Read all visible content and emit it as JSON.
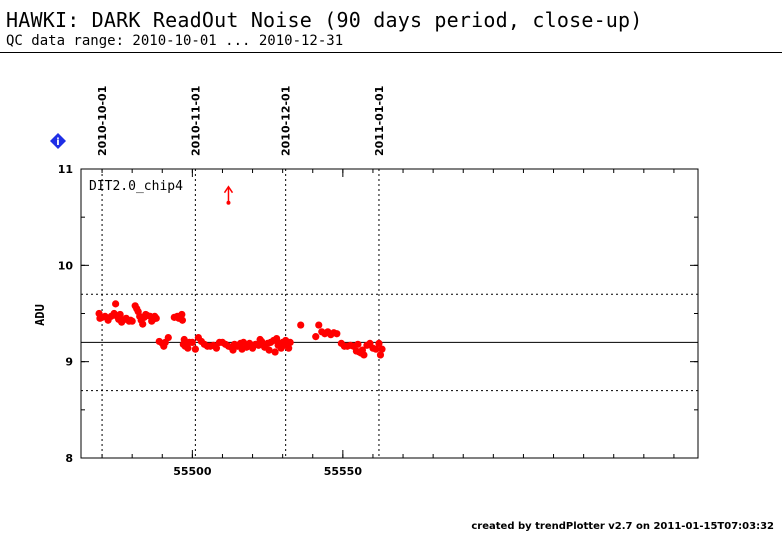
{
  "header": {
    "title": "HAWKI: DARK ReadOut Noise (90 days period, close-up)",
    "subtitle": "QC data range: 2010-10-01 ... 2010-12-31"
  },
  "footer": {
    "credit": "created by trendPlotter v2.7 on 2011-01-15T07:03:32"
  },
  "info_icon": {
    "name": "info-diamond-icon",
    "glyph": "i",
    "color": "#1e2ee6"
  },
  "colors": {
    "points": "#ff0000",
    "lines": "#000000"
  },
  "chart_data": {
    "type": "scatter",
    "ylabel": "ADU",
    "panel_label": "DIT2.0_chip4",
    "xlim": [
      55463,
      55668
    ],
    "ylim": [
      8,
      11
    ],
    "x_ticks": [
      55500,
      55550
    ],
    "x_tick_labels": [
      "55500",
      "55550"
    ],
    "y_ticks": [
      8,
      9,
      10,
      11
    ],
    "y_tick_labels": [
      "8",
      "9",
      "10",
      "11"
    ],
    "reference_lines": {
      "mean": 9.2,
      "upper": 9.7,
      "lower": 8.7
    },
    "date_markers": [
      {
        "label": "2010-10-01",
        "x": 55470
      },
      {
        "label": "2010-11-01",
        "x": 55501
      },
      {
        "label": "2010-12-01",
        "x": 55531
      },
      {
        "label": "2011-01-01",
        "x": 55562
      }
    ],
    "outlier": {
      "x": 55512,
      "y": 11.2,
      "shown_at": 10.65,
      "note": "off-scale"
    },
    "points": [
      [
        55469,
        9.5
      ],
      [
        55469.3,
        9.45
      ],
      [
        55470,
        9.46
      ],
      [
        55471,
        9.47
      ],
      [
        55472,
        9.43
      ],
      [
        55473,
        9.47
      ],
      [
        55474,
        9.5
      ],
      [
        55474.5,
        9.6
      ],
      [
        55475,
        9.47
      ],
      [
        55475.5,
        9.44
      ],
      [
        55476,
        9.49
      ],
      [
        55476.5,
        9.41
      ],
      [
        55477,
        9.43
      ],
      [
        55478,
        9.45
      ],
      [
        55479,
        9.42
      ],
      [
        55479.5,
        9.43
      ],
      [
        55480,
        9.42
      ],
      [
        55481,
        9.58
      ],
      [
        55481.5,
        9.55
      ],
      [
        55482,
        9.52
      ],
      [
        55482.5,
        9.47
      ],
      [
        55483,
        9.43
      ],
      [
        55483.5,
        9.39
      ],
      [
        55484,
        9.46
      ],
      [
        55484.5,
        9.49
      ],
      [
        55485,
        9.48
      ],
      [
        55486,
        9.47
      ],
      [
        55486.5,
        9.42
      ],
      [
        55487,
        9.44
      ],
      [
        55487.5,
        9.47
      ],
      [
        55488,
        9.45
      ],
      [
        55489,
        9.21
      ],
      [
        55490,
        9.19
      ],
      [
        55490.5,
        9.16
      ],
      [
        55491,
        9.2
      ],
      [
        55492,
        9.25
      ],
      [
        55494,
        9.46
      ],
      [
        55495,
        9.47
      ],
      [
        55495.5,
        9.45
      ],
      [
        55496,
        9.47
      ],
      [
        55496.5,
        9.49
      ],
      [
        55496.7,
        9.43
      ],
      [
        55497,
        9.18
      ],
      [
        55497.3,
        9.23
      ],
      [
        55497.6,
        9.16
      ],
      [
        55498,
        9.18
      ],
      [
        55498.5,
        9.14
      ],
      [
        55499,
        9.2
      ],
      [
        55500,
        9.2
      ],
      [
        55501,
        9.13
      ],
      [
        55502,
        9.25
      ],
      [
        55503,
        9.21
      ],
      [
        55504,
        9.18
      ],
      [
        55505,
        9.16
      ],
      [
        55506,
        9.16
      ],
      [
        55507,
        9.17
      ],
      [
        55508,
        9.14
      ],
      [
        55509,
        9.2
      ],
      [
        55510,
        9.2
      ],
      [
        55511,
        9.18
      ],
      [
        55512,
        9.16
      ],
      [
        55513,
        9.15
      ],
      [
        55513.5,
        9.12
      ],
      [
        55514,
        9.18
      ],
      [
        55515,
        9.16
      ],
      [
        55516,
        9.19
      ],
      [
        55516.5,
        9.13
      ],
      [
        55517,
        9.2
      ],
      [
        55518,
        9.15
      ],
      [
        55519,
        9.19
      ],
      [
        55520,
        9.14
      ],
      [
        55521,
        9.18
      ],
      [
        55522,
        9.17
      ],
      [
        55522.5,
        9.23
      ],
      [
        55523,
        9.21
      ],
      [
        55524,
        9.15
      ],
      [
        55525,
        9.19
      ],
      [
        55525.5,
        9.12
      ],
      [
        55526,
        9.2
      ],
      [
        55527,
        9.22
      ],
      [
        55527.5,
        9.1
      ],
      [
        55528,
        9.24
      ],
      [
        55528.5,
        9.17
      ],
      [
        55529,
        9.19
      ],
      [
        55529.5,
        9.14
      ],
      [
        55530,
        9.2
      ],
      [
        55530.5,
        9.17
      ],
      [
        55531,
        9.22
      ],
      [
        55532,
        9.14
      ],
      [
        55532.5,
        9.2
      ],
      [
        55536,
        9.38
      ],
      [
        55541,
        9.26
      ],
      [
        55542,
        9.38
      ],
      [
        55543,
        9.31
      ],
      [
        55544,
        9.29
      ],
      [
        55545,
        9.31
      ],
      [
        55546,
        9.28
      ],
      [
        55547,
        9.3
      ],
      [
        55548,
        9.29
      ],
      [
        55549.5,
        9.19
      ],
      [
        55550.5,
        9.16
      ],
      [
        55551.5,
        9.16
      ],
      [
        55552.5,
        9.17
      ],
      [
        55553.5,
        9.16
      ],
      [
        55554.5,
        9.11
      ],
      [
        55555,
        9.18
      ],
      [
        55555.5,
        9.1
      ],
      [
        55556,
        9.09
      ],
      [
        55556.5,
        9.12
      ],
      [
        55557,
        9.07
      ],
      [
        55558,
        9.17
      ],
      [
        55559,
        9.19
      ],
      [
        55560,
        9.14
      ],
      [
        55561,
        9.13
      ],
      [
        55562,
        9.19
      ],
      [
        55562.5,
        9.07
      ],
      [
        55563,
        9.13
      ]
    ]
  }
}
